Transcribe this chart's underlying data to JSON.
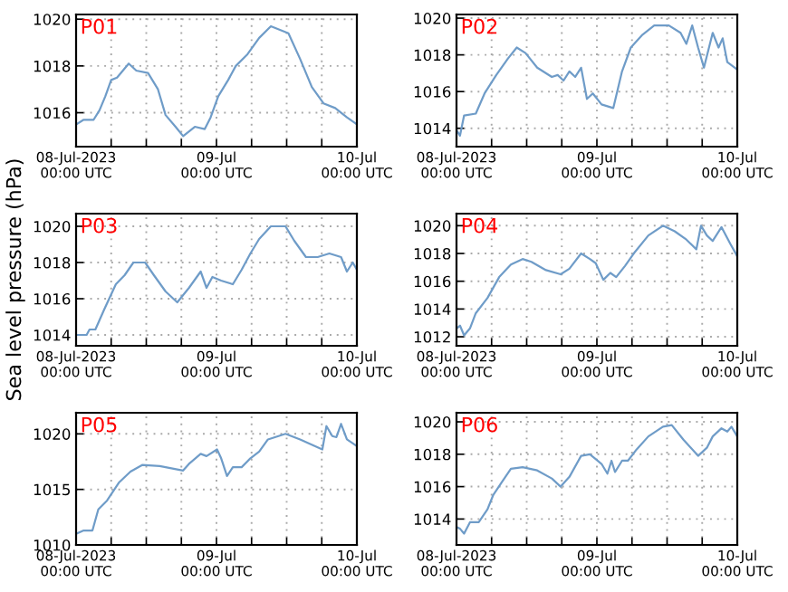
{
  "chart_data": [
    {
      "type": "line",
      "title": "P01",
      "x": [
        "2023-07-08T00:00",
        "2023-07-08T01:18",
        "2023-07-08T03:00",
        "2023-07-08T04:00",
        "2023-07-08T05:00",
        "2023-07-08T06:00",
        "2023-07-08T07:00",
        "2023-07-08T09:00",
        "2023-07-08T10:18",
        "2023-07-08T12:18",
        "2023-07-08T14:00",
        "2023-07-08T15:18",
        "2023-07-08T17:00",
        "2023-07-08T18:18",
        "2023-07-08T20:18",
        "2023-07-08T22:00",
        "2023-07-08T23:00",
        "2023-07-09T00:18",
        "2023-07-09T02:00",
        "2023-07-09T03:18",
        "2023-07-09T05:18",
        "2023-07-09T07:18",
        "2023-07-09T09:18",
        "2023-07-09T12:18",
        "2023-07-09T14:18",
        "2023-07-09T16:18",
        "2023-07-09T18:18",
        "2023-07-09T20:18",
        "2023-07-09T22:18",
        "2023-07-10T00:00"
      ],
      "series": [
        {
          "color": "#6f9cc8",
          "values": [
            1015.5,
            1015.7,
            1015.7,
            1016.1,
            1016.7,
            1017.4,
            1017.5,
            1018.1,
            1017.8,
            1017.7,
            1017.0,
            1015.9,
            1015.4,
            1015.0,
            1015.4,
            1015.3,
            1015.8,
            1016.7,
            1017.4,
            1018.0,
            1018.5,
            1019.2,
            1019.7,
            1019.4,
            1018.3,
            1017.1,
            1016.4,
            1016.2,
            1015.8,
            1015.5
          ]
        }
      ],
      "xlim": [
        "2023-07-08T00:00",
        "2023-07-10T00:00"
      ],
      "xticks": [
        {
          "value": "2023-07-08T00:00",
          "label": "08-Jul-2023\n00:00 UTC"
        },
        {
          "value": "2023-07-08T06:00",
          "label": null
        },
        {
          "value": "2023-07-08T12:00",
          "label": null
        },
        {
          "value": "2023-07-08T18:00",
          "label": null
        },
        {
          "value": "2023-07-09T00:00",
          "label": "09-Jul\n00:00 UTC"
        },
        {
          "value": "2023-07-09T06:00",
          "label": null
        },
        {
          "value": "2023-07-09T12:00",
          "label": null
        },
        {
          "value": "2023-07-09T18:00",
          "label": null
        },
        {
          "value": "2023-07-10T00:00",
          "label": "10-Jul\n00:00 UTC"
        }
      ],
      "ylim": [
        1014.55,
        1020.2
      ],
      "yticks": [
        1016,
        1018,
        1020
      ],
      "grid": true
    },
    {
      "type": "line",
      "title": "P02",
      "x": [
        "2023-07-08T00:00",
        "2023-07-08T00:36",
        "2023-07-08T01:18",
        "2023-07-08T03:18",
        "2023-07-08T04:48",
        "2023-07-08T06:48",
        "2023-07-08T08:48",
        "2023-07-08T10:18",
        "2023-07-08T11:48",
        "2023-07-08T13:48",
        "2023-07-08T16:18",
        "2023-07-08T17:18",
        "2023-07-08T18:18",
        "2023-07-08T19:18",
        "2023-07-08T20:18",
        "2023-07-08T21:18",
        "2023-07-08T22:18",
        "2023-07-08T23:18",
        "2023-07-09T00:48",
        "2023-07-09T02:48",
        "2023-07-09T04:18",
        "2023-07-09T05:48",
        "2023-07-09T07:48",
        "2023-07-09T09:48",
        "2023-07-09T12:18",
        "2023-07-09T14:18",
        "2023-07-09T15:18",
        "2023-07-09T16:18",
        "2023-07-09T17:18",
        "2023-07-09T18:18",
        "2023-07-09T19:48",
        "2023-07-09T20:48",
        "2023-07-09T21:30",
        "2023-07-09T22:18",
        "2023-07-10T00:00"
      ],
      "series": [
        {
          "color": "#6f9cc8",
          "values": [
            1013.9,
            1013.6,
            1014.7,
            1014.8,
            1015.9,
            1016.9,
            1017.8,
            1018.4,
            1018.1,
            1017.3,
            1016.8,
            1016.9,
            1016.6,
            1017.1,
            1016.8,
            1017.3,
            1015.6,
            1015.9,
            1015.3,
            1015.1,
            1017.1,
            1018.4,
            1019.1,
            1019.6,
            1019.6,
            1019.2,
            1018.6,
            1019.6,
            1018.4,
            1017.3,
            1019.2,
            1018.4,
            1018.9,
            1017.6,
            1017.2
          ]
        }
      ],
      "xlim": [
        "2023-07-08T00:00",
        "2023-07-10T00:00"
      ],
      "xticks": [
        {
          "value": "2023-07-08T00:00",
          "label": "08-Jul-2023\n00:00 UTC"
        },
        {
          "value": "2023-07-08T06:00",
          "label": null
        },
        {
          "value": "2023-07-08T12:00",
          "label": null
        },
        {
          "value": "2023-07-08T18:00",
          "label": null
        },
        {
          "value": "2023-07-09T00:00",
          "label": "09-Jul\n00:00 UTC"
        },
        {
          "value": "2023-07-09T06:00",
          "label": null
        },
        {
          "value": "2023-07-09T12:00",
          "label": null
        },
        {
          "value": "2023-07-09T18:00",
          "label": null
        },
        {
          "value": "2023-07-10T00:00",
          "label": "10-Jul\n00:00 UTC"
        }
      ],
      "ylim": [
        1013.0,
        1020.2
      ],
      "yticks": [
        1014,
        1016,
        1018,
        1020
      ],
      "grid": true
    },
    {
      "type": "line",
      "title": "P03",
      "ylabel": "Sea level pressure (hPa)",
      "x": [
        "2023-07-08T00:00",
        "2023-07-08T01:48",
        "2023-07-08T02:18",
        "2023-07-08T03:18",
        "2023-07-08T04:48",
        "2023-07-08T06:48",
        "2023-07-08T08:18",
        "2023-07-08T09:48",
        "2023-07-08T11:48",
        "2023-07-08T13:18",
        "2023-07-08T15:18",
        "2023-07-08T17:18",
        "2023-07-08T19:18",
        "2023-07-08T21:18",
        "2023-07-08T22:18",
        "2023-07-08T23:18",
        "2023-07-09T00:48",
        "2023-07-09T02:48",
        "2023-07-09T04:18",
        "2023-07-09T05:48",
        "2023-07-09T07:18",
        "2023-07-09T09:18",
        "2023-07-09T11:48",
        "2023-07-09T13:18",
        "2023-07-09T15:18",
        "2023-07-09T17:18",
        "2023-07-09T19:18",
        "2023-07-09T21:18",
        "2023-07-09T22:18",
        "2023-07-09T23:18",
        "2023-07-10T00:00"
      ],
      "series": [
        {
          "color": "#6f9cc8",
          "values": [
            1014.0,
            1014.0,
            1014.3,
            1014.3,
            1015.4,
            1016.8,
            1017.3,
            1018.0,
            1018.0,
            1017.3,
            1016.4,
            1015.8,
            1016.6,
            1017.5,
            1016.6,
            1017.2,
            1017.0,
            1016.8,
            1017.6,
            1018.5,
            1019.3,
            1020.0,
            1020.0,
            1019.2,
            1018.3,
            1018.3,
            1018.5,
            1018.3,
            1017.5,
            1018.0,
            1017.6
          ]
        }
      ],
      "xlim": [
        "2023-07-08T00:00",
        "2023-07-10T00:00"
      ],
      "xticks": [
        {
          "value": "2023-07-08T00:00",
          "label": "08-Jul-2023\n00:00 UTC"
        },
        {
          "value": "2023-07-08T06:00",
          "label": null
        },
        {
          "value": "2023-07-08T12:00",
          "label": null
        },
        {
          "value": "2023-07-08T18:00",
          "label": null
        },
        {
          "value": "2023-07-09T00:00",
          "label": "09-Jul\n00:00 UTC"
        },
        {
          "value": "2023-07-09T06:00",
          "label": null
        },
        {
          "value": "2023-07-09T12:00",
          "label": null
        },
        {
          "value": "2023-07-09T18:00",
          "label": null
        },
        {
          "value": "2023-07-10T00:00",
          "label": "10-Jul\n00:00 UTC"
        }
      ],
      "ylim": [
        1013.4,
        1020.7
      ],
      "yticks": [
        1014,
        1016,
        1018,
        1020
      ],
      "grid": true
    },
    {
      "type": "line",
      "title": "P04",
      "x": [
        "2023-07-08T00:00",
        "2023-07-08T00:36",
        "2023-07-08T01:18",
        "2023-07-08T02:18",
        "2023-07-08T03:18",
        "2023-07-08T05:18",
        "2023-07-08T07:18",
        "2023-07-08T09:18",
        "2023-07-08T11:18",
        "2023-07-08T12:48",
        "2023-07-08T15:18",
        "2023-07-08T17:48",
        "2023-07-08T19:18",
        "2023-07-08T21:18",
        "2023-07-08T22:48",
        "2023-07-08T23:48",
        "2023-07-09T01:06",
        "2023-07-09T02:18",
        "2023-07-09T03:18",
        "2023-07-09T04:48",
        "2023-07-09T06:18",
        "2023-07-09T08:48",
        "2023-07-09T11:18",
        "2023-07-09T13:18",
        "2023-07-09T15:18",
        "2023-07-09T17:00",
        "2023-07-09T17:48",
        "2023-07-09T18:48",
        "2023-07-09T19:48",
        "2023-07-09T21:18",
        "2023-07-09T22:48",
        "2023-07-10T00:00"
      ],
      "series": [
        {
          "color": "#6f9cc8",
          "values": [
            1012.6,
            1012.8,
            1012.1,
            1012.6,
            1013.7,
            1014.8,
            1016.3,
            1017.2,
            1017.6,
            1017.4,
            1016.8,
            1016.5,
            1016.9,
            1018.0,
            1017.6,
            1017.3,
            1016.1,
            1016.6,
            1016.3,
            1017.1,
            1018.0,
            1019.3,
            1020.0,
            1019.6,
            1019.0,
            1018.3,
            1020.0,
            1019.3,
            1018.9,
            1019.9,
            1018.7,
            1017.8
          ]
        }
      ],
      "xlim": [
        "2023-07-08T00:00",
        "2023-07-10T00:00"
      ],
      "xticks": [
        {
          "value": "2023-07-08T00:00",
          "label": "08-Jul-2023\n00:00 UTC"
        },
        {
          "value": "2023-07-08T06:00",
          "label": null
        },
        {
          "value": "2023-07-08T12:00",
          "label": null
        },
        {
          "value": "2023-07-08T18:00",
          "label": null
        },
        {
          "value": "2023-07-09T00:00",
          "label": "09-Jul\n00:00 UTC"
        },
        {
          "value": "2023-07-09T06:00",
          "label": null
        },
        {
          "value": "2023-07-09T12:00",
          "label": null
        },
        {
          "value": "2023-07-09T18:00",
          "label": null
        },
        {
          "value": "2023-07-10T00:00",
          "label": "10-Jul\n00:00 UTC"
        }
      ],
      "ylim": [
        1011.35,
        1020.87
      ],
      "yticks": [
        1012,
        1014,
        1016,
        1018,
        1020
      ],
      "grid": true
    },
    {
      "type": "line",
      "title": "P05",
      "x": [
        "2023-07-08T00:00",
        "2023-07-08T01:18",
        "2023-07-08T02:48",
        "2023-07-08T03:48",
        "2023-07-08T05:18",
        "2023-07-08T07:18",
        "2023-07-08T09:18",
        "2023-07-08T11:18",
        "2023-07-08T14:18",
        "2023-07-08T16:18",
        "2023-07-08T18:18",
        "2023-07-08T19:18",
        "2023-07-08T21:18",
        "2023-07-08T22:18",
        "2023-07-09T00:06",
        "2023-07-09T00:48",
        "2023-07-09T01:48",
        "2023-07-09T02:48",
        "2023-07-09T04:18",
        "2023-07-09T05:48",
        "2023-07-09T07:18",
        "2023-07-09T08:48",
        "2023-07-09T11:48",
        "2023-07-09T14:18",
        "2023-07-09T16:48",
        "2023-07-09T18:06",
        "2023-07-09T18:48",
        "2023-07-09T19:48",
        "2023-07-09T20:30",
        "2023-07-09T21:18",
        "2023-07-09T22:18",
        "2023-07-10T00:00"
      ],
      "series": [
        {
          "color": "#6f9cc8",
          "values": [
            1011.0,
            1011.3,
            1011.3,
            1013.2,
            1014.0,
            1015.6,
            1016.6,
            1017.2,
            1017.1,
            1016.9,
            1016.7,
            1017.3,
            1018.2,
            1018.0,
            1018.6,
            1017.8,
            1016.2,
            1017.0,
            1017.0,
            1017.8,
            1018.4,
            1019.5,
            1020.0,
            1019.5,
            1018.9,
            1018.6,
            1020.7,
            1019.8,
            1019.7,
            1020.9,
            1019.5,
            1018.9
          ]
        }
      ],
      "xlim": [
        "2023-07-08T00:00",
        "2023-07-10T00:00"
      ],
      "xticks": [
        {
          "value": "2023-07-08T00:00",
          "label": "08-Jul-2023\n00:00 UTC"
        },
        {
          "value": "2023-07-08T06:00",
          "label": null
        },
        {
          "value": "2023-07-08T12:00",
          "label": null
        },
        {
          "value": "2023-07-08T18:00",
          "label": null
        },
        {
          "value": "2023-07-09T00:00",
          "label": "09-Jul\n00:00 UTC"
        },
        {
          "value": "2023-07-09T06:00",
          "label": null
        },
        {
          "value": "2023-07-09T12:00",
          "label": null
        },
        {
          "value": "2023-07-09T18:00",
          "label": null
        },
        {
          "value": "2023-07-10T00:00",
          "label": "10-Jul\n00:00 UTC"
        }
      ],
      "ylim": [
        1010.0,
        1021.9
      ],
      "yticks": [
        1010,
        1015,
        1020
      ],
      "grid": true
    },
    {
      "type": "line",
      "title": "P06",
      "x": [
        "2023-07-08T00:00",
        "2023-07-08T00:36",
        "2023-07-08T01:18",
        "2023-07-08T02:18",
        "2023-07-08T03:48",
        "2023-07-08T05:18",
        "2023-07-08T06:18",
        "2023-07-08T07:48",
        "2023-07-08T09:18",
        "2023-07-08T11:18",
        "2023-07-08T13:48",
        "2023-07-08T16:18",
        "2023-07-08T17:48",
        "2023-07-08T19:18",
        "2023-07-08T21:18",
        "2023-07-08T22:48",
        "2023-07-09T00:48",
        "2023-07-09T01:48",
        "2023-07-09T02:30",
        "2023-07-09T03:06",
        "2023-07-09T04:18",
        "2023-07-09T05:18",
        "2023-07-09T06:48",
        "2023-07-09T08:48",
        "2023-07-09T11:18",
        "2023-07-09T12:48",
        "2023-07-09T14:48",
        "2023-07-09T17:18",
        "2023-07-09T18:48",
        "2023-07-09T19:48",
        "2023-07-09T21:18",
        "2023-07-09T22:18",
        "2023-07-09T23:00",
        "2023-07-10T00:00"
      ],
      "series": [
        {
          "color": "#6f9cc8",
          "values": [
            1013.5,
            1013.4,
            1013.1,
            1013.8,
            1013.8,
            1014.6,
            1015.5,
            1016.3,
            1017.1,
            1017.2,
            1017.0,
            1016.5,
            1016.0,
            1016.6,
            1017.9,
            1018.0,
            1017.4,
            1016.8,
            1017.6,
            1016.9,
            1017.6,
            1017.6,
            1018.3,
            1019.1,
            1019.7,
            1019.8,
            1018.9,
            1017.9,
            1018.4,
            1019.1,
            1019.6,
            1019.4,
            1019.7,
            1019.1
          ]
        }
      ],
      "xlim": [
        "2023-07-08T00:00",
        "2023-07-10T00:00"
      ],
      "xticks": [
        {
          "value": "2023-07-08T00:00",
          "label": "08-Jul-2023\n00:00 UTC"
        },
        {
          "value": "2023-07-08T06:00",
          "label": null
        },
        {
          "value": "2023-07-08T12:00",
          "label": null
        },
        {
          "value": "2023-07-08T18:00",
          "label": null
        },
        {
          "value": "2023-07-09T00:00",
          "label": "09-Jul\n00:00 UTC"
        },
        {
          "value": "2023-07-09T06:00",
          "label": null
        },
        {
          "value": "2023-07-09T12:00",
          "label": null
        },
        {
          "value": "2023-07-09T18:00",
          "label": null
        },
        {
          "value": "2023-07-10T00:00",
          "label": "10-Jul\n00:00 UTC"
        }
      ],
      "ylim": [
        1012.4,
        1020.56
      ],
      "yticks": [
        1014,
        1016,
        1018,
        1020
      ],
      "grid": true
    }
  ]
}
